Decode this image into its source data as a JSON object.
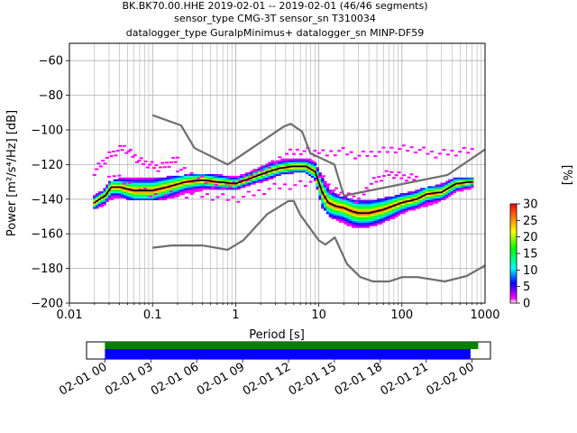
{
  "chart_data": {
    "type": "heatmap",
    "title_lines": [
      "BK.BK70.00.HHE   2019-02-01 -- 2019-02-01  (46/46 segments)",
      "sensor_type CMG-3T sensor_sn T310034",
      "datalogger_type GuralpMinimus+ datalogger_sn MINP-DF59"
    ],
    "xlabel": "Period [s]",
    "ylabel": "Power [m²/s⁴/Hz] [dB]",
    "x_scale": "log",
    "xlim": [
      0.01,
      1000
    ],
    "ylim": [
      -200,
      -50
    ],
    "x_ticks": [
      {
        "value": 0.01,
        "label": "0.01"
      },
      {
        "value": 0.1,
        "label": "0.1"
      },
      {
        "value": 1,
        "label": "1"
      },
      {
        "value": 10,
        "label": "10"
      },
      {
        "value": 100,
        "label": "100"
      },
      {
        "value": 1000,
        "label": "1000"
      }
    ],
    "y_ticks": [
      {
        "value": -60,
        "label": "−60"
      },
      {
        "value": -80,
        "label": "−80"
      },
      {
        "value": -100,
        "label": "−100"
      },
      {
        "value": -120,
        "label": "−120"
      },
      {
        "value": -140,
        "label": "−140"
      },
      {
        "value": -160,
        "label": "−160"
      },
      {
        "value": -180,
        "label": "−180"
      },
      {
        "value": -200,
        "label": "−200"
      }
    ],
    "grid": true,
    "colorbar": {
      "label": "[%]",
      "range": [
        0,
        30
      ],
      "ticks": [
        {
          "value": 0,
          "label": "0"
        },
        {
          "value": 5,
          "label": "5"
        },
        {
          "value": 10,
          "label": "10"
        },
        {
          "value": 15,
          "label": "15"
        },
        {
          "value": 20,
          "label": "20"
        },
        {
          "value": 25,
          "label": "25"
        },
        {
          "value": 30,
          "label": "30"
        }
      ],
      "colors": [
        "#ffffff",
        "#ff00ff",
        "#0000ff",
        "#00ffff",
        "#00ff00",
        "#ffff00",
        "#ff8000",
        "#ff0000"
      ]
    },
    "nhnm": {
      "x": [
        0.1,
        0.22,
        0.32,
        0.8,
        3.8,
        4.6,
        6.3,
        7.9,
        15.4,
        20,
        354.8,
        1000
      ],
      "y": [
        -91.5,
        -97.4,
        -110.5,
        -120,
        -98,
        -96.5,
        -101,
        -113.5,
        -120,
        -138,
        -126,
        -111.3
      ]
    },
    "nlnm": {
      "x": [
        0.1,
        0.17,
        0.4,
        0.8,
        1.24,
        2.4,
        4.3,
        5,
        6,
        10,
        12,
        15.6,
        21.9,
        31.6,
        45,
        70,
        101,
        154,
        328,
        600,
        1000
      ],
      "y": [
        -168,
        -166.7,
        -166.7,
        -169.2,
        -163.7,
        -148.6,
        -141.1,
        -141.1,
        -149,
        -163.8,
        -166.2,
        -162.1,
        -177.5,
        -185,
        -187.5,
        -187.5,
        -185,
        -185,
        -187.5,
        -184.4,
        -178.3
      ]
    },
    "mean_line": {
      "x": [
        0.02,
        0.023,
        0.027,
        0.032,
        0.04,
        0.06,
        0.1,
        0.15,
        0.25,
        0.4,
        0.6,
        1.0,
        1.5,
        2.5,
        3.5,
        5,
        7,
        9,
        11,
        13,
        16,
        20,
        25,
        30,
        40,
        60,
        100,
        150,
        200,
        300,
        450,
        700
      ],
      "y": [
        -142,
        -140,
        -138,
        -133,
        -133,
        -135,
        -135,
        -133,
        -130,
        -129,
        -130,
        -131,
        -128,
        -124,
        -122,
        -121,
        -121,
        -124,
        -136,
        -142,
        -144,
        -145,
        -147,
        -148,
        -148,
        -146,
        -142,
        -140,
        -137,
        -136,
        -131,
        -130
      ]
    },
    "hist_spread": {
      "x": [
        0.02,
        0.025,
        0.03,
        0.04,
        0.06,
        0.1,
        0.15,
        0.25,
        0.4,
        0.7,
        1.0,
        1.5,
        2.5,
        3.5,
        5,
        7,
        9,
        11,
        14,
        18,
        25,
        35,
        50,
        80,
        120,
        200,
        300,
        450,
        700
      ],
      "hi": [
        -138,
        -136,
        -131,
        -129,
        -128,
        -128,
        -128,
        -127,
        -126,
        -127,
        -128,
        -125,
        -120,
        -118,
        -117,
        -117,
        -119,
        -128,
        -136,
        -139,
        -141,
        -142,
        -141,
        -139,
        -137,
        -134,
        -132,
        -128,
        -128
      ],
      "lo": [
        -145,
        -143,
        -140,
        -138,
        -140,
        -140,
        -139,
        -136,
        -134,
        -134,
        -134,
        -131,
        -128,
        -125,
        -124,
        -124,
        -128,
        -144,
        -150,
        -152,
        -155,
        -156,
        -154,
        -150,
        -146,
        -143,
        -140,
        -135,
        -133
      ]
    },
    "magenta_traces": [
      {
        "x": [
          0.02,
          0.03,
          0.045,
          0.07,
          0.12,
          0.2
        ],
        "y": [
          -124,
          -115,
          -110,
          -118,
          -122,
          -117
        ]
      },
      {
        "x": [
          0.2,
          0.4,
          0.7,
          1.2,
          2.2,
          4,
          6,
          9
        ],
        "y": [
          -122,
          -129,
          -133,
          -128,
          -124,
          -114,
          -112,
          -113
        ]
      },
      {
        "x": [
          9,
          12,
          18,
          30,
          50,
          80,
          150,
          250,
          400,
          700
        ],
        "y": [
          -113,
          -114,
          -112,
          -115,
          -113,
          -111,
          -111,
          -114,
          -113,
          -112
        ]
      },
      {
        "x": [
          10,
          14,
          20,
          30,
          45,
          70,
          100,
          150
        ],
        "y": [
          -125,
          -134,
          -138,
          -140,
          -130,
          -125,
          -127,
          -128
        ]
      },
      {
        "x": [
          0.03,
          0.05,
          0.1,
          0.3,
          1.0,
          3,
          8
        ],
        "y": [
          -125,
          -131,
          -138,
          -137,
          -140,
          -133,
          -131
        ]
      }
    ],
    "time_coverage": {
      "ticks": [
        "02-01 00",
        "02-01 03",
        "02-01 06",
        "02-01 09",
        "02-01 12",
        "02-01 15",
        "02-01 18",
        "02-01 21",
        "02-02 00"
      ],
      "tick_hours": [
        0,
        3,
        6,
        9,
        12,
        15,
        18,
        21,
        24
      ],
      "xlim_hours": [
        -1.2,
        25.2
      ],
      "green_bar_hours": [
        0,
        24.4
      ],
      "blue_bar_hours": [
        0,
        23.9
      ],
      "green_color": "#008000",
      "blue_color": "#0000ff"
    },
    "colors": {
      "noise_model": "#6e6e6e",
      "mean": "#000000",
      "grid": "#b0b0b0"
    }
  }
}
